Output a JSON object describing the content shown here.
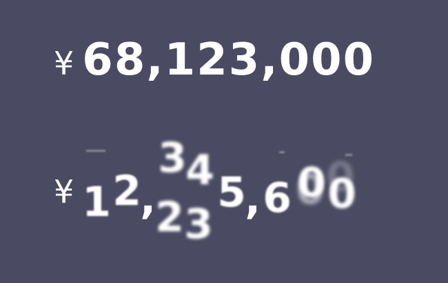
{
  "static_amount": {
    "currency": "¥",
    "value": "68,123,000"
  },
  "rolling_amount": {
    "currency": "¥",
    "glyphs": {
      "d1": "1",
      "d2": "2",
      "comma1": ",",
      "d3_top": "3",
      "d3_bottom": "2",
      "d4_top": "4",
      "d4_bottom": "3",
      "d5": "5",
      "comma2": ",",
      "d6": "6",
      "d7": "0",
      "d8": "0"
    }
  },
  "colors": {
    "background": "#4a4a62",
    "text": "#ffffff"
  }
}
